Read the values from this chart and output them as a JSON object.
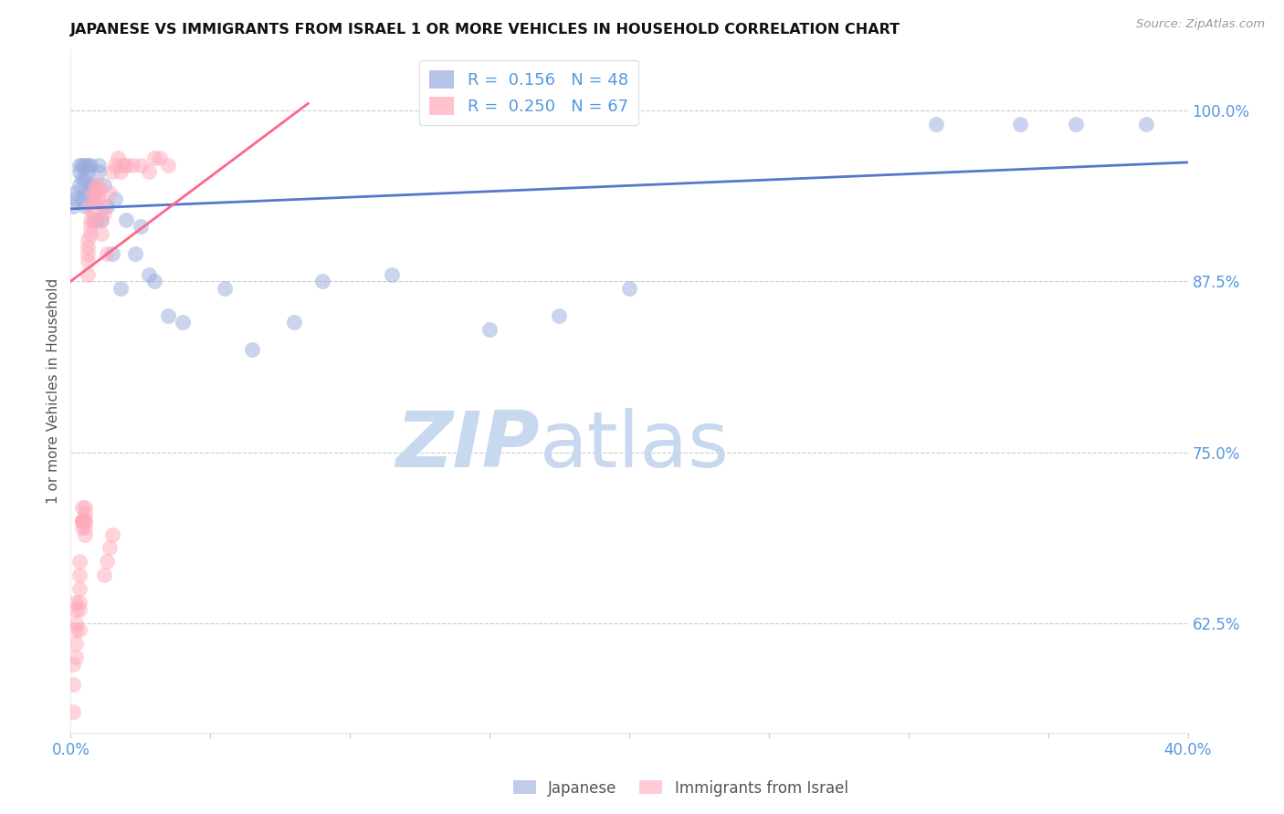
{
  "title": "JAPANESE VS IMMIGRANTS FROM ISRAEL 1 OR MORE VEHICLES IN HOUSEHOLD CORRELATION CHART",
  "source": "Source: ZipAtlas.com",
  "ylabel": "1 or more Vehicles in Household",
  "ytick_vals": [
    0.625,
    0.75,
    0.875,
    1.0
  ],
  "ytick_labels": [
    "62.5%",
    "75.0%",
    "87.5%",
    "100.0%"
  ],
  "xmin": 0.0,
  "xmax": 0.4,
  "ymin": 0.545,
  "ymax": 1.045,
  "blue_r": 0.156,
  "blue_n": 48,
  "pink_r": 0.25,
  "pink_n": 67,
  "legend_label1": "Japanese",
  "legend_label2": "Immigrants from Israel",
  "watermark_zip": "ZIP",
  "watermark_atlas": "atlas",
  "blue_scatter_x": [
    0.001,
    0.002,
    0.002,
    0.003,
    0.003,
    0.003,
    0.004,
    0.004,
    0.004,
    0.005,
    0.005,
    0.005,
    0.005,
    0.006,
    0.006,
    0.007,
    0.007,
    0.007,
    0.008,
    0.008,
    0.009,
    0.01,
    0.01,
    0.011,
    0.012,
    0.013,
    0.015,
    0.016,
    0.018,
    0.02,
    0.023,
    0.025,
    0.028,
    0.03,
    0.035,
    0.04,
    0.055,
    0.065,
    0.08,
    0.09,
    0.115,
    0.15,
    0.175,
    0.2,
    0.31,
    0.34,
    0.36,
    0.385
  ],
  "blue_scatter_y": [
    0.93,
    0.94,
    0.935,
    0.945,
    0.955,
    0.96,
    0.95,
    0.935,
    0.96,
    0.93,
    0.94,
    0.95,
    0.96,
    0.96,
    0.955,
    0.94,
    0.945,
    0.96,
    0.935,
    0.945,
    0.92,
    0.955,
    0.96,
    0.92,
    0.945,
    0.93,
    0.895,
    0.935,
    0.87,
    0.92,
    0.895,
    0.915,
    0.88,
    0.875,
    0.85,
    0.845,
    0.87,
    0.825,
    0.845,
    0.875,
    0.88,
    0.84,
    0.85,
    0.87,
    0.99,
    0.99,
    0.99,
    0.99
  ],
  "pink_scatter_x": [
    0.001,
    0.001,
    0.001,
    0.002,
    0.002,
    0.002,
    0.002,
    0.002,
    0.002,
    0.003,
    0.003,
    0.003,
    0.003,
    0.003,
    0.003,
    0.004,
    0.004,
    0.004,
    0.004,
    0.004,
    0.004,
    0.005,
    0.005,
    0.005,
    0.005,
    0.005,
    0.005,
    0.006,
    0.006,
    0.006,
    0.006,
    0.006,
    0.007,
    0.007,
    0.007,
    0.007,
    0.008,
    0.008,
    0.008,
    0.008,
    0.009,
    0.009,
    0.01,
    0.01,
    0.01,
    0.011,
    0.011,
    0.012,
    0.012,
    0.013,
    0.014,
    0.015,
    0.016,
    0.017,
    0.018,
    0.019,
    0.02,
    0.022,
    0.025,
    0.028,
    0.03,
    0.032,
    0.035,
    0.012,
    0.013,
    0.014,
    0.015
  ],
  "pink_scatter_y": [
    0.58,
    0.595,
    0.56,
    0.64,
    0.62,
    0.61,
    0.6,
    0.625,
    0.635,
    0.62,
    0.635,
    0.64,
    0.65,
    0.66,
    0.67,
    0.7,
    0.7,
    0.7,
    0.7,
    0.695,
    0.71,
    0.7,
    0.69,
    0.695,
    0.7,
    0.705,
    0.71,
    0.88,
    0.89,
    0.895,
    0.9,
    0.905,
    0.91,
    0.915,
    0.92,
    0.93,
    0.92,
    0.925,
    0.935,
    0.94,
    0.94,
    0.945,
    0.935,
    0.94,
    0.945,
    0.91,
    0.92,
    0.925,
    0.93,
    0.895,
    0.94,
    0.955,
    0.96,
    0.965,
    0.955,
    0.96,
    0.96,
    0.96,
    0.96,
    0.955,
    0.965,
    0.965,
    0.96,
    0.66,
    0.67,
    0.68,
    0.69
  ],
  "blue_line_x": [
    0.0,
    0.4
  ],
  "blue_line_y": [
    0.928,
    0.962
  ],
  "pink_line_x": [
    0.0,
    0.085
  ],
  "pink_line_y": [
    0.875,
    1.005
  ],
  "blue_dot_color": "#99aadd",
  "blue_line_color": "#5577cc",
  "pink_dot_color": "#ffaabb",
  "pink_line_color": "#ff6688",
  "axis_label_color": "#5599dd",
  "grid_color": "#cccccc",
  "watermark_zip_color": "#c8d8ee",
  "watermark_atlas_color": "#c8d8ee",
  "bg_color": "#ffffff",
  "title_color": "#111111",
  "ylabel_color": "#555555",
  "source_color": "#999999",
  "legend_text_color": "#5599dd"
}
